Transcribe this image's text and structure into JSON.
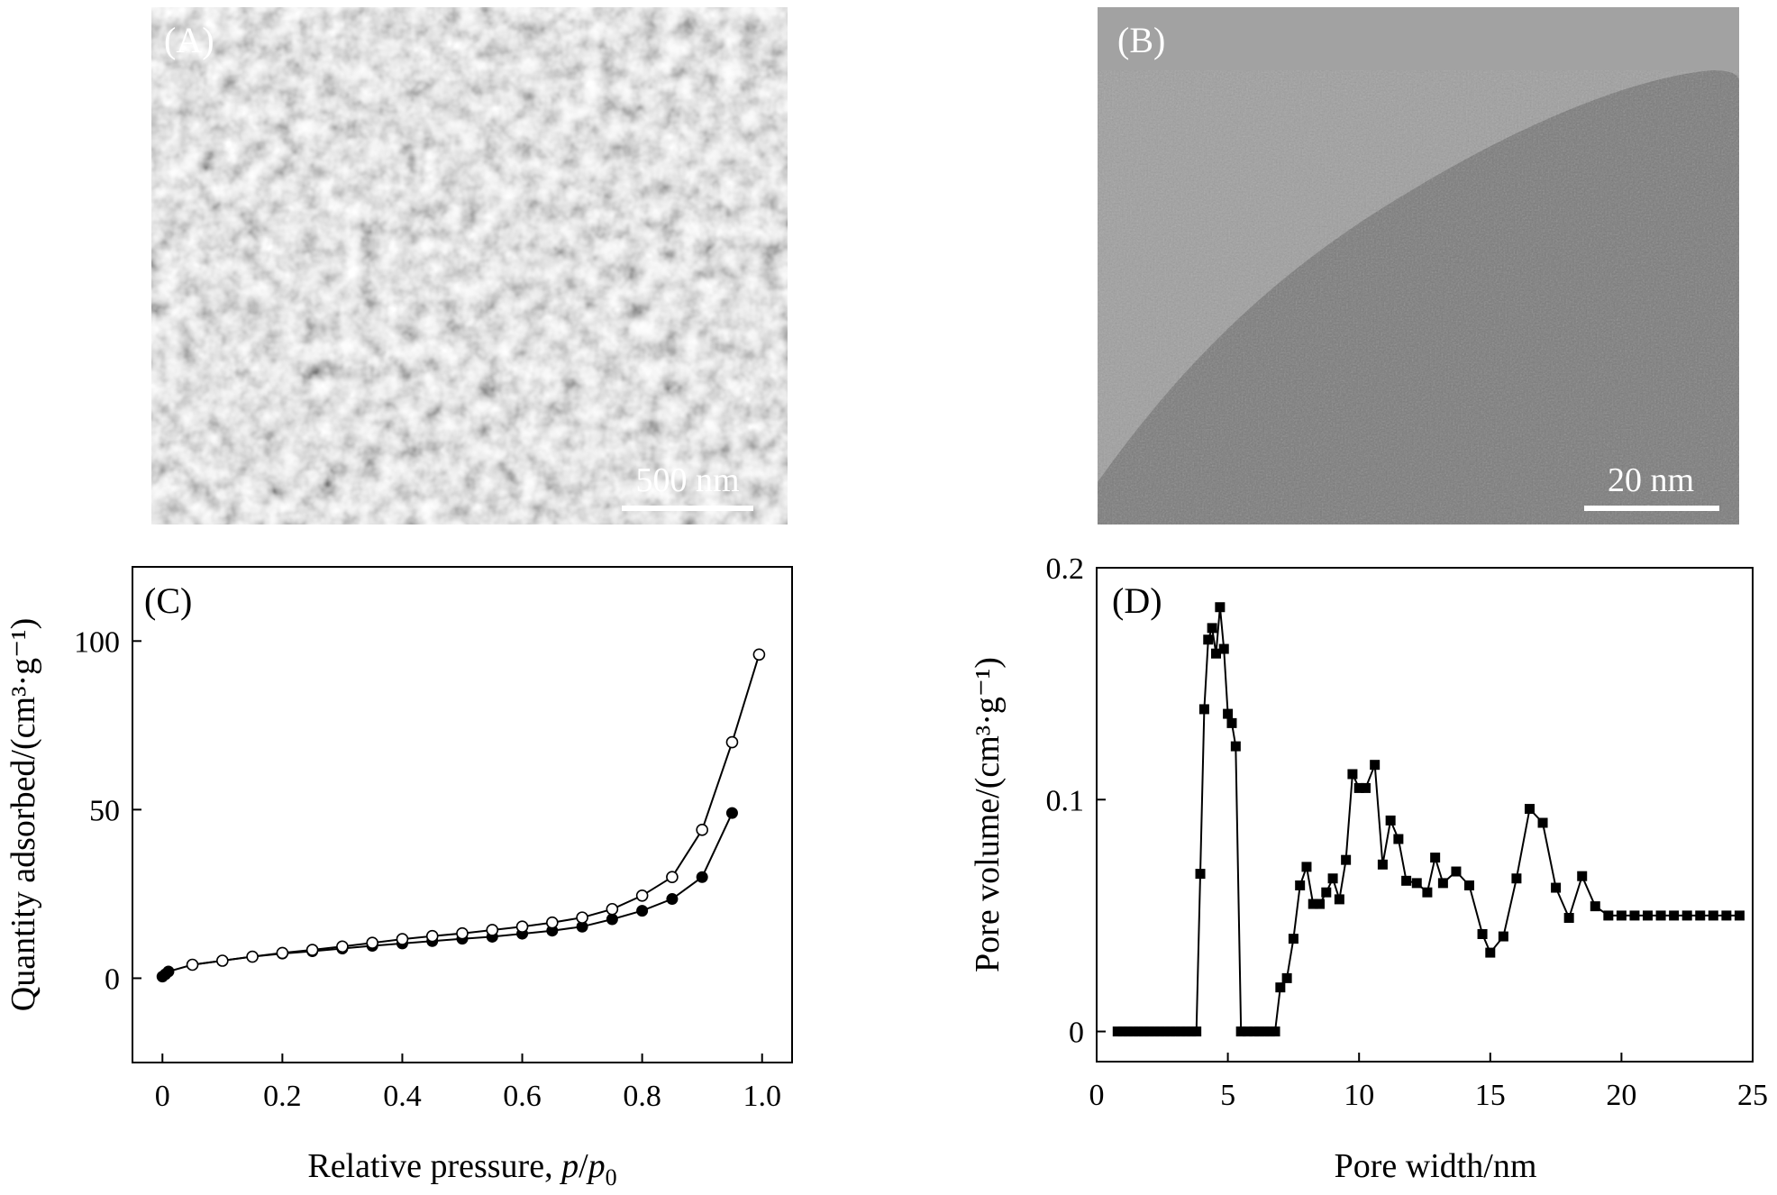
{
  "panels": {
    "A": {
      "label": "(A)",
      "scale_bar": "500 nm"
    },
    "B": {
      "label": "(B)",
      "scale_bar": "20 nm"
    },
    "C": {
      "label": "(C)"
    },
    "D": {
      "label": "(D)"
    }
  },
  "chart_data": [
    {
      "panel": "C",
      "type": "line",
      "xlabel": "Relative pressure, p/p0",
      "ylabel": "Quantity adsorbed/(cm³·g⁻¹)",
      "xlim": [
        -0.05,
        1.05
      ],
      "ylim": [
        -25,
        122
      ],
      "xticks": [
        0.0,
        0.2,
        0.4,
        0.6,
        0.8,
        1.0
      ],
      "xtick_labels": [
        "0",
        "0.2",
        "0.4",
        "0.6",
        "0.8",
        "1.0"
      ],
      "yticks": [
        0,
        50,
        100
      ],
      "ytick_labels": [
        "0",
        "50",
        "100"
      ],
      "grid": false,
      "series": [
        {
          "marker": "filled-circle",
          "x": [
            0.0,
            0.005,
            0.01,
            0.05,
            0.1,
            0.15,
            0.2,
            0.25,
            0.3,
            0.35,
            0.4,
            0.45,
            0.5,
            0.55,
            0.6,
            0.65,
            0.7,
            0.75,
            0.8,
            0.85,
            0.9,
            0.95
          ],
          "y": [
            0.5,
            1.2,
            2.0,
            4.0,
            5.2,
            6.4,
            7.3,
            8.0,
            8.8,
            9.6,
            10.3,
            11.0,
            11.7,
            12.3,
            13.2,
            14.1,
            15.3,
            17.5,
            20.0,
            23.5,
            30.0,
            49.0
          ]
        },
        {
          "marker": "open-circle",
          "x": [
            0.05,
            0.1,
            0.15,
            0.2,
            0.25,
            0.3,
            0.35,
            0.4,
            0.45,
            0.5,
            0.55,
            0.6,
            0.65,
            0.7,
            0.75,
            0.8,
            0.85,
            0.9,
            0.95,
            0.995
          ],
          "y": [
            4.0,
            5.2,
            6.4,
            7.5,
            8.4,
            9.4,
            10.5,
            11.6,
            12.5,
            13.3,
            14.3,
            15.3,
            16.5,
            18.0,
            20.5,
            24.5,
            30.0,
            44.0,
            70.0,
            96.0
          ]
        }
      ]
    },
    {
      "panel": "D",
      "type": "line",
      "xlabel": "Pore width/nm",
      "ylabel": "Pore volume/(cm³·g⁻¹)",
      "xlim": [
        0,
        25
      ],
      "ylim": [
        -0.013,
        0.2
      ],
      "xticks": [
        0,
        5,
        10,
        15,
        20,
        25
      ],
      "xtick_labels": [
        "0",
        "5",
        "10",
        "15",
        "20",
        "25"
      ],
      "yticks": [
        0,
        0.1,
        0.2
      ],
      "ytick_labels": [
        "0",
        "0.1",
        "0.2"
      ],
      "grid": false,
      "series": [
        {
          "marker": "filled-square",
          "x": [
            0.8,
            1.0,
            1.2,
            1.4,
            1.6,
            1.8,
            2.0,
            2.2,
            2.4,
            2.6,
            2.8,
            3.0,
            3.2,
            3.4,
            3.6,
            3.8,
            3.95,
            4.1,
            4.25,
            4.4,
            4.55,
            4.7,
            4.85,
            5.0,
            5.15,
            5.3,
            5.5,
            5.75,
            6.0,
            6.2,
            6.4,
            6.6,
            6.8,
            7.0,
            7.25,
            7.5,
            7.75,
            8.0,
            8.25,
            8.5,
            8.75,
            9.0,
            9.25,
            9.5,
            9.75,
            10.0,
            10.25,
            10.6,
            10.9,
            11.2,
            11.5,
            11.8,
            12.2,
            12.6,
            12.9,
            13.2,
            13.7,
            14.2,
            14.7,
            15.0,
            15.5,
            16.0,
            16.5,
            17.0,
            17.5,
            18.0,
            18.5,
            19.0,
            19.5,
            20.0,
            20.5,
            21.0,
            21.5,
            22.0,
            22.5,
            23.0,
            23.5,
            24.0,
            24.5
          ],
          "y": [
            0,
            0,
            0,
            0,
            0,
            0,
            0,
            0,
            0,
            0,
            0,
            0,
            0,
            0,
            0,
            0,
            0.068,
            0.139,
            0.169,
            0.174,
            0.163,
            0.183,
            0.165,
            0.137,
            0.133,
            0.123,
            0,
            0,
            0,
            0,
            0,
            0,
            0,
            0.019,
            0.023,
            0.04,
            0.063,
            0.071,
            0.055,
            0.055,
            0.06,
            0.066,
            0.057,
            0.074,
            0.111,
            0.105,
            0.105,
            0.115,
            0.072,
            0.091,
            0.083,
            0.065,
            0.064,
            0.06,
            0.075,
            0.064,
            0.069,
            0.063,
            0.042,
            0.034,
            0.041,
            0.066,
            0.096,
            0.09,
            0.062,
            0.049,
            0.067,
            0.054,
            0.05,
            0.05,
            0.05,
            0.05,
            0.05,
            0.05,
            0.05,
            0.05,
            0.05,
            0.05,
            0.05
          ]
        }
      ]
    }
  ]
}
